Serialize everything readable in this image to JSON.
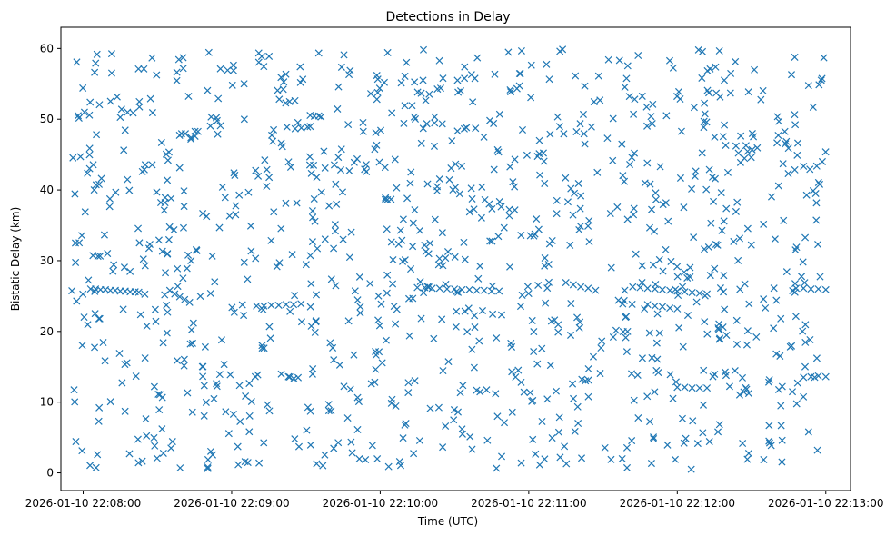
{
  "chart_data": {
    "type": "scatter",
    "title": "Detections in Delay",
    "xlabel": "Time (UTC)",
    "ylabel": "Bistatic Delay (km)",
    "marker": "x",
    "color": "#1f77b4",
    "grid": false,
    "legend": "none",
    "xlim": [
      "2026-01-10 22:07:51",
      "2026-01-10 22:13:10"
    ],
    "ylim": [
      -2.5,
      63
    ],
    "x_ticks": [
      "2026-01-10 22:08:00",
      "2026-01-10 22:09:00",
      "2026-01-10 22:10:00",
      "2026-01-10 22:11:00",
      "2026-01-10 22:12:00",
      "2026-01-10 22:13:00"
    ],
    "y_ticks": [
      0,
      10,
      20,
      30,
      40,
      50,
      60
    ],
    "tracks": [
      {
        "points": [
          [
            "2026-01-10 22:08:03",
            26.0
          ],
          [
            "2026-01-10 22:08:05",
            26.0
          ],
          [
            "2026-01-10 22:08:07",
            25.9
          ],
          [
            "2026-01-10 22:08:09",
            25.9
          ],
          [
            "2026-01-10 22:08:11",
            25.8
          ],
          [
            "2026-01-10 22:08:13",
            25.8
          ],
          [
            "2026-01-10 22:08:15",
            25.7
          ],
          [
            "2026-01-10 22:08:17",
            25.7
          ],
          [
            "2026-01-10 22:08:19",
            25.6
          ],
          [
            "2026-01-10 22:08:21",
            25.6
          ]
        ]
      },
      {
        "points": [
          [
            "2026-01-10 22:08:35",
            25.8
          ],
          [
            "2026-01-10 22:08:37",
            25.3
          ],
          [
            "2026-01-10 22:08:39",
            24.9
          ],
          [
            "2026-01-10 22:08:41",
            24.5
          ],
          [
            "2026-01-10 22:08:43",
            24.1
          ]
        ]
      },
      {
        "points": [
          [
            "2026-01-10 22:09:10",
            23.6
          ],
          [
            "2026-01-10 22:09:13",
            23.6
          ],
          [
            "2026-01-10 22:09:16",
            23.7
          ],
          [
            "2026-01-10 22:09:19",
            23.7
          ],
          [
            "2026-01-10 22:09:22",
            23.8
          ],
          [
            "2026-01-10 22:09:25",
            23.8
          ],
          [
            "2026-01-10 22:09:28",
            23.9
          ]
        ]
      },
      {
        "points": [
          [
            "2026-01-10 22:10:15",
            26.2
          ],
          [
            "2026-01-10 22:10:18",
            26.2
          ],
          [
            "2026-01-10 22:10:21",
            26.1
          ],
          [
            "2026-01-10 22:10:24",
            26.1
          ],
          [
            "2026-01-10 22:10:27",
            26.0
          ],
          [
            "2026-01-10 22:10:30",
            26.0
          ],
          [
            "2026-01-10 22:10:33",
            25.9
          ],
          [
            "2026-01-10 22:10:36",
            25.9
          ],
          [
            "2026-01-10 22:10:39",
            25.8
          ],
          [
            "2026-01-10 22:10:42",
            25.8
          ],
          [
            "2026-01-10 22:10:45",
            25.7
          ],
          [
            "2026-01-10 22:10:48",
            25.7
          ]
        ]
      },
      {
        "points": [
          [
            "2026-01-10 22:11:15",
            26.9
          ],
          [
            "2026-01-10 22:11:18",
            26.6
          ],
          [
            "2026-01-10 22:11:21",
            26.3
          ],
          [
            "2026-01-10 22:11:24",
            26.1
          ],
          [
            "2026-01-10 22:11:27",
            25.8
          ]
        ]
      },
      {
        "points": [
          [
            "2026-01-10 22:11:42",
            26.3
          ],
          [
            "2026-01-10 22:11:45",
            26.2
          ],
          [
            "2026-01-10 22:11:48",
            26.1
          ],
          [
            "2026-01-10 22:11:51",
            26.0
          ],
          [
            "2026-01-10 22:11:54",
            25.9
          ],
          [
            "2026-01-10 22:11:57",
            25.8
          ],
          [
            "2026-01-10 22:12:00",
            25.7
          ],
          [
            "2026-01-10 22:12:03",
            25.6
          ],
          [
            "2026-01-10 22:12:06",
            25.5
          ],
          [
            "2026-01-10 22:12:09",
            25.4
          ],
          [
            "2026-01-10 22:12:12",
            25.3
          ]
        ]
      },
      {
        "points": [
          [
            "2026-01-10 22:11:48",
            23.8
          ],
          [
            "2026-01-10 22:11:51",
            23.6
          ],
          [
            "2026-01-10 22:11:54",
            23.5
          ],
          [
            "2026-01-10 22:11:57",
            23.3
          ],
          [
            "2026-01-10 22:12:00",
            23.2
          ]
        ]
      },
      {
        "points": [
          [
            "2026-01-10 22:12:00",
            12.1
          ],
          [
            "2026-01-10 22:12:03",
            12.1
          ],
          [
            "2026-01-10 22:12:06",
            12.0
          ],
          [
            "2026-01-10 22:12:09",
            12.0
          ],
          [
            "2026-01-10 22:12:12",
            12.0
          ]
        ]
      },
      {
        "points": [
          [
            "2026-01-10 22:12:48",
            26.1
          ],
          [
            "2026-01-10 22:12:51",
            26.1
          ],
          [
            "2026-01-10 22:12:54",
            26.0
          ],
          [
            "2026-01-10 22:12:57",
            26.0
          ],
          [
            "2026-01-10 22:13:00",
            25.9
          ]
        ]
      },
      {
        "points": [
          [
            "2026-01-10 22:12:51",
            13.5
          ],
          [
            "2026-01-10 22:12:54",
            13.6
          ],
          [
            "2026-01-10 22:12:57",
            13.7
          ],
          [
            "2026-01-10 22:13:00",
            13.6
          ]
        ]
      }
    ],
    "clutter": {
      "count": 1100,
      "x_range": [
        "2026-01-10 22:07:55",
        "2026-01-10 22:13:00"
      ],
      "y_range": [
        0.5,
        60
      ]
    }
  }
}
